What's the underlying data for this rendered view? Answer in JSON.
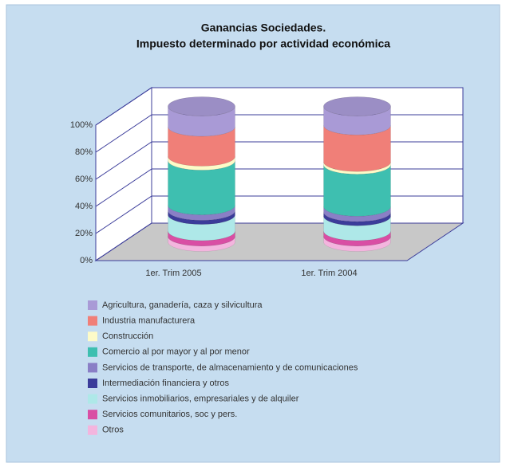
{
  "chart_data": {
    "type": "stacked_cylinder_100",
    "title": "Ganancias Sociedades.",
    "subtitle": "Impuesto determinado por actividad económica",
    "categories": [
      "1er. Trim 2005",
      "1er. Trim 2004"
    ],
    "ylim": [
      0,
      100
    ],
    "yticks": [
      {
        "value": 0,
        "label": "0%"
      },
      {
        "value": 20,
        "label": "20%"
      },
      {
        "value": 40,
        "label": "40%"
      },
      {
        "value": 60,
        "label": "60%"
      },
      {
        "value": 80,
        "label": "80%"
      },
      {
        "value": 100,
        "label": "100%"
      }
    ],
    "grid": true,
    "series": [
      {
        "name": "Agricultura, ganadería, caza y silvicultura",
        "color": "#a99ad6",
        "values": [
          15,
          14
        ]
      },
      {
        "name": "Industria manufacturera",
        "color": "#f07f78",
        "values": [
          22,
          27
        ]
      },
      {
        "name": "Construcción",
        "color": "#fdfbc8",
        "values": [
          3,
          2
        ]
      },
      {
        "name": "Comercio al por mayor y al por menor",
        "color": "#3ebfb0",
        "values": [
          33,
          31
        ]
      },
      {
        "name": "Servicios de transporte, de almacenamiento y de comunicaciones",
        "color": "#8a7fc6",
        "values": [
          4,
          4
        ]
      },
      {
        "name": "Intermediación financiera y otros",
        "color": "#3b3c9a",
        "values": [
          3,
          3
        ]
      },
      {
        "name": "Servicios inmobiliarios, empresariales y de alquiler",
        "color": "#aee8e8",
        "values": [
          12,
          11
        ]
      },
      {
        "name": "Servicios comunitarios, soc y pers.",
        "color": "#d94ea4",
        "values": [
          4,
          4
        ]
      },
      {
        "name": "Otros",
        "color": "#f3b5de",
        "values": [
          4,
          4
        ]
      }
    ]
  }
}
